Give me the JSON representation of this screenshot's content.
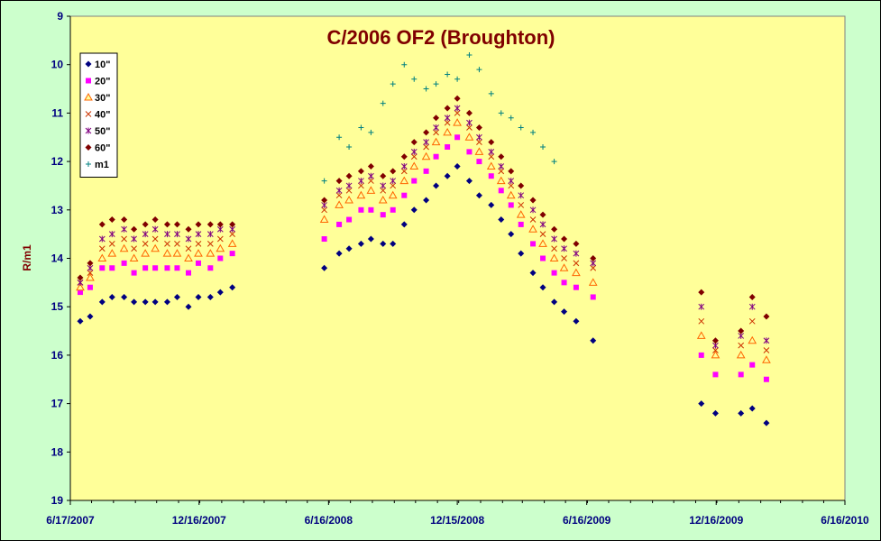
{
  "chart_data": {
    "type": "scatter",
    "title": "C/2006 OF2 (Broughton)",
    "xlabel": "",
    "ylabel": "R/m1",
    "ylim": [
      19,
      9
    ],
    "y_inverted": true,
    "y_ticks": [
      9,
      10,
      11,
      12,
      13,
      14,
      15,
      16,
      17,
      18,
      19
    ],
    "xlim": [
      "2007-06-17",
      "2010-06-16"
    ],
    "x_ticks": [
      "6/17/2007",
      "12/16/2007",
      "6/16/2008",
      "12/15/2008",
      "6/16/2009",
      "12/16/2009",
      "6/16/2010"
    ],
    "grid": false,
    "legend_position": "top-left",
    "plot_background": "#ffff99",
    "outer_background": "#ccffcc",
    "series": [
      {
        "name": "10\"",
        "marker": "diamond",
        "color": "#000080",
        "x": [
          "2007-07-01",
          "2007-07-15",
          "2007-08-01",
          "2007-08-15",
          "2007-09-01",
          "2007-09-15",
          "2007-10-01",
          "2007-10-15",
          "2007-11-01",
          "2007-11-15",
          "2007-12-01",
          "2007-12-15",
          "2008-01-01",
          "2008-01-15",
          "2008-02-01",
          "2008-06-10",
          "2008-07-01",
          "2008-07-15",
          "2008-08-01",
          "2008-08-15",
          "2008-09-01",
          "2008-09-15",
          "2008-10-01",
          "2008-10-15",
          "2008-11-01",
          "2008-11-15",
          "2008-12-01",
          "2008-12-15",
          "2009-01-01",
          "2009-01-15",
          "2009-02-01",
          "2009-02-15",
          "2009-03-01",
          "2009-03-15",
          "2009-04-01",
          "2009-04-15",
          "2009-05-01",
          "2009-05-15",
          "2009-06-01",
          "2009-06-25",
          "2009-11-25",
          "2009-12-15",
          "2010-01-20",
          "2010-02-05",
          "2010-02-25"
        ],
        "y": [
          15.3,
          15.2,
          14.9,
          14.8,
          14.8,
          14.9,
          14.9,
          14.9,
          14.9,
          14.8,
          15.0,
          14.8,
          14.8,
          14.7,
          14.6,
          14.2,
          13.9,
          13.8,
          13.7,
          13.6,
          13.7,
          13.7,
          13.3,
          13.0,
          12.8,
          12.5,
          12.3,
          12.1,
          12.4,
          12.7,
          12.9,
          13.2,
          13.5,
          13.9,
          14.3,
          14.6,
          14.9,
          15.1,
          15.3,
          15.7,
          17.0,
          17.2,
          17.2,
          17.1,
          17.4
        ]
      },
      {
        "name": "20\"",
        "marker": "square",
        "color": "#ff00ff",
        "x": [
          "2007-07-01",
          "2007-07-15",
          "2007-08-01",
          "2007-08-15",
          "2007-09-01",
          "2007-09-15",
          "2007-10-01",
          "2007-10-15",
          "2007-11-01",
          "2007-11-15",
          "2007-12-01",
          "2007-12-15",
          "2008-01-01",
          "2008-01-15",
          "2008-02-01",
          "2008-06-10",
          "2008-07-01",
          "2008-07-15",
          "2008-08-01",
          "2008-08-15",
          "2008-09-01",
          "2008-09-15",
          "2008-10-01",
          "2008-10-15",
          "2008-11-01",
          "2008-11-15",
          "2008-12-01",
          "2008-12-15",
          "2009-01-01",
          "2009-01-15",
          "2009-02-01",
          "2009-02-15",
          "2009-03-01",
          "2009-03-15",
          "2009-04-01",
          "2009-04-15",
          "2009-05-01",
          "2009-05-15",
          "2009-06-01",
          "2009-06-25",
          "2009-11-25",
          "2009-12-15",
          "2010-01-20",
          "2010-02-05",
          "2010-02-25"
        ],
        "y": [
          14.7,
          14.6,
          14.2,
          14.2,
          14.1,
          14.3,
          14.2,
          14.2,
          14.2,
          14.2,
          14.3,
          14.1,
          14.2,
          14.0,
          13.9,
          13.6,
          13.3,
          13.2,
          13.0,
          13.0,
          13.1,
          13.0,
          12.7,
          12.4,
          12.2,
          11.9,
          11.7,
          11.5,
          11.8,
          12.0,
          12.3,
          12.6,
          12.9,
          13.3,
          13.7,
          14.0,
          14.3,
          14.5,
          14.6,
          14.8,
          16.0,
          16.4,
          16.4,
          16.2,
          16.5
        ]
      },
      {
        "name": "30\"",
        "marker": "triangle",
        "color": "#ff6600",
        "x": [
          "2007-07-01",
          "2007-07-15",
          "2007-08-01",
          "2007-08-15",
          "2007-09-01",
          "2007-09-15",
          "2007-10-01",
          "2007-10-15",
          "2007-11-01",
          "2007-11-15",
          "2007-12-01",
          "2007-12-15",
          "2008-01-01",
          "2008-01-15",
          "2008-02-01",
          "2008-06-10",
          "2008-07-01",
          "2008-07-15",
          "2008-08-01",
          "2008-08-15",
          "2008-09-01",
          "2008-09-15",
          "2008-10-01",
          "2008-10-15",
          "2008-11-01",
          "2008-11-15",
          "2008-12-01",
          "2008-12-15",
          "2009-01-01",
          "2009-01-15",
          "2009-02-01",
          "2009-02-15",
          "2009-03-01",
          "2009-03-15",
          "2009-04-01",
          "2009-04-15",
          "2009-05-01",
          "2009-05-15",
          "2009-06-01",
          "2009-06-25",
          "2009-11-25",
          "2009-12-15",
          "2010-01-20",
          "2010-02-05",
          "2010-02-25"
        ],
        "y": [
          14.6,
          14.4,
          14.0,
          13.9,
          13.8,
          14.0,
          13.9,
          13.8,
          13.9,
          13.9,
          14.0,
          13.9,
          13.9,
          13.8,
          13.7,
          13.2,
          12.9,
          12.8,
          12.7,
          12.6,
          12.8,
          12.7,
          12.4,
          12.1,
          11.9,
          11.6,
          11.4,
          11.2,
          11.5,
          11.8,
          12.1,
          12.4,
          12.7,
          13.1,
          13.4,
          13.7,
          14.0,
          14.2,
          14.3,
          14.5,
          15.6,
          16.0,
          16.0,
          15.7,
          16.1
        ]
      },
      {
        "name": "40\"",
        "marker": "x",
        "color": "#cc3300",
        "x": [
          "2007-07-01",
          "2007-07-15",
          "2007-08-01",
          "2007-08-15",
          "2007-09-01",
          "2007-09-15",
          "2007-10-01",
          "2007-10-15",
          "2007-11-01",
          "2007-11-15",
          "2007-12-01",
          "2007-12-15",
          "2008-01-01",
          "2008-01-15",
          "2008-02-01",
          "2008-06-10",
          "2008-07-01",
          "2008-07-15",
          "2008-08-01",
          "2008-08-15",
          "2008-09-01",
          "2008-09-15",
          "2008-10-01",
          "2008-10-15",
          "2008-11-01",
          "2008-11-15",
          "2008-12-01",
          "2008-12-15",
          "2009-01-01",
          "2009-01-15",
          "2009-02-01",
          "2009-02-15",
          "2009-03-01",
          "2009-03-15",
          "2009-04-01",
          "2009-04-15",
          "2009-05-01",
          "2009-05-15",
          "2009-06-01",
          "2009-06-25",
          "2009-11-25",
          "2009-12-15",
          "2010-01-20",
          "2010-02-05",
          "2010-02-25"
        ],
        "y": [
          14.5,
          14.3,
          13.8,
          13.7,
          13.6,
          13.8,
          13.7,
          13.6,
          13.7,
          13.7,
          13.8,
          13.7,
          13.7,
          13.6,
          13.5,
          13.0,
          12.7,
          12.6,
          12.5,
          12.4,
          12.6,
          12.5,
          12.2,
          11.9,
          11.7,
          11.4,
          11.2,
          11.0,
          11.3,
          11.6,
          11.9,
          12.2,
          12.5,
          12.9,
          13.2,
          13.5,
          13.8,
          14.0,
          14.1,
          14.2,
          15.3,
          15.9,
          15.8,
          15.3,
          15.9
        ]
      },
      {
        "name": "50\"",
        "marker": "asterisk",
        "color": "#800080",
        "x": [
          "2007-07-01",
          "2007-07-15",
          "2007-08-01",
          "2007-08-15",
          "2007-09-01",
          "2007-09-15",
          "2007-10-01",
          "2007-10-15",
          "2007-11-01",
          "2007-11-15",
          "2007-12-01",
          "2007-12-15",
          "2008-01-01",
          "2008-01-15",
          "2008-02-01",
          "2008-06-10",
          "2008-07-01",
          "2008-07-15",
          "2008-08-01",
          "2008-08-15",
          "2008-09-01",
          "2008-09-15",
          "2008-10-01",
          "2008-10-15",
          "2008-11-01",
          "2008-11-15",
          "2008-12-01",
          "2008-12-15",
          "2009-01-01",
          "2009-01-15",
          "2009-02-01",
          "2009-02-15",
          "2009-03-01",
          "2009-03-15",
          "2009-04-01",
          "2009-04-15",
          "2009-05-01",
          "2009-05-15",
          "2009-06-01",
          "2009-06-25",
          "2009-11-25",
          "2009-12-15",
          "2010-01-20",
          "2010-02-05",
          "2010-02-25"
        ],
        "y": [
          14.5,
          14.2,
          13.6,
          13.5,
          13.4,
          13.6,
          13.5,
          13.4,
          13.5,
          13.5,
          13.6,
          13.5,
          13.5,
          13.4,
          13.4,
          12.9,
          12.6,
          12.5,
          12.4,
          12.3,
          12.5,
          12.4,
          12.1,
          11.8,
          11.6,
          11.3,
          11.1,
          10.9,
          11.2,
          11.5,
          11.8,
          12.1,
          12.4,
          12.7,
          13.0,
          13.3,
          13.6,
          13.8,
          13.9,
          14.1,
          15.0,
          15.8,
          15.6,
          15.0,
          15.7
        ]
      },
      {
        "name": "60\"",
        "marker": "diamond",
        "color": "#800000",
        "x": [
          "2007-07-01",
          "2007-07-15",
          "2007-08-01",
          "2007-08-15",
          "2007-09-01",
          "2007-09-15",
          "2007-10-01",
          "2007-10-15",
          "2007-11-01",
          "2007-11-15",
          "2007-12-01",
          "2007-12-15",
          "2008-01-01",
          "2008-01-15",
          "2008-02-01",
          "2008-06-10",
          "2008-07-01",
          "2008-07-15",
          "2008-08-01",
          "2008-08-15",
          "2008-09-01",
          "2008-09-15",
          "2008-10-01",
          "2008-10-15",
          "2008-11-01",
          "2008-11-15",
          "2008-12-01",
          "2008-12-15",
          "2009-01-01",
          "2009-01-15",
          "2009-02-01",
          "2009-02-15",
          "2009-03-01",
          "2009-03-15",
          "2009-04-01",
          "2009-04-15",
          "2009-05-01",
          "2009-05-15",
          "2009-06-01",
          "2009-06-25",
          "2009-11-25",
          "2009-12-15",
          "2010-01-20",
          "2010-02-05",
          "2010-02-25"
        ],
        "y": [
          14.4,
          14.1,
          13.3,
          13.2,
          13.2,
          13.4,
          13.3,
          13.2,
          13.3,
          13.3,
          13.4,
          13.3,
          13.3,
          13.3,
          13.3,
          12.8,
          12.4,
          12.3,
          12.2,
          12.1,
          12.3,
          12.2,
          11.9,
          11.6,
          11.4,
          11.1,
          10.9,
          10.7,
          11.0,
          11.3,
          11.6,
          11.9,
          12.2,
          12.5,
          12.8,
          13.1,
          13.4,
          13.6,
          13.7,
          14.0,
          14.7,
          15.7,
          15.5,
          14.8,
          15.2
        ]
      },
      {
        "name": "m1",
        "marker": "plus",
        "color": "#008080",
        "x": [
          "2008-06-10",
          "2008-07-01",
          "2008-07-15",
          "2008-08-01",
          "2008-08-15",
          "2008-09-01",
          "2008-09-15",
          "2008-10-01",
          "2008-10-15",
          "2008-11-01",
          "2008-11-15",
          "2008-12-01",
          "2008-12-15",
          "2009-01-01",
          "2009-01-15",
          "2009-02-01",
          "2009-02-15",
          "2009-03-01",
          "2009-03-15",
          "2009-04-01",
          "2009-04-15",
          "2009-05-01"
        ],
        "y": [
          12.4,
          11.5,
          11.7,
          11.3,
          11.4,
          10.8,
          10.4,
          10.0,
          10.3,
          10.5,
          10.4,
          10.2,
          10.3,
          9.8,
          10.1,
          10.6,
          11.0,
          11.1,
          11.3,
          11.4,
          11.7,
          12.0
        ]
      }
    ]
  }
}
